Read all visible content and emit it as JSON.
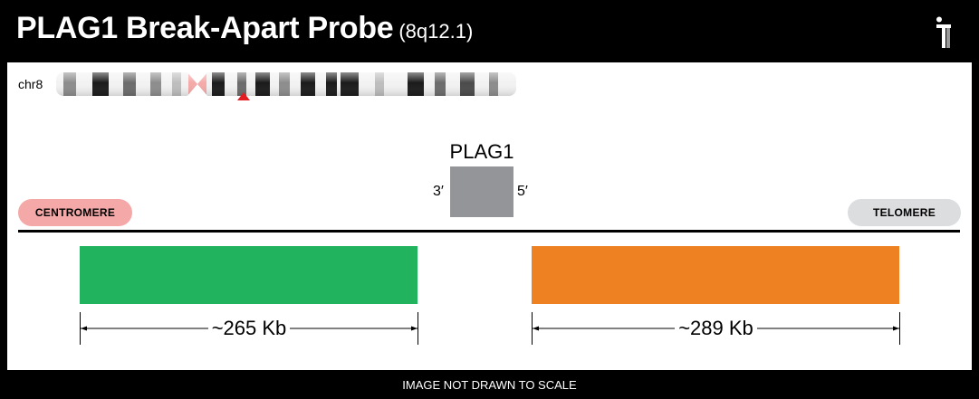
{
  "header": {
    "title": "PLAG1 Break-Apart Probe",
    "locus": "(8q12.1)",
    "logo_icon": "brand-logo-icon"
  },
  "chromosome": {
    "label": "chr8",
    "marker_color": "#e31b23"
  },
  "gene": {
    "name": "PLAG1",
    "three_prime": "3′",
    "five_prime": "5′",
    "color": "#939598"
  },
  "orientation": {
    "left_label": "CENTROMERE",
    "right_label": "TELOMERE"
  },
  "probes": [
    {
      "color": "#22b35e",
      "size_label": "~265 Kb"
    },
    {
      "color": "#ee8223",
      "size_label": "~289 Kb"
    }
  ],
  "footer": {
    "note": "IMAGE NOT DRAWN TO SCALE"
  }
}
